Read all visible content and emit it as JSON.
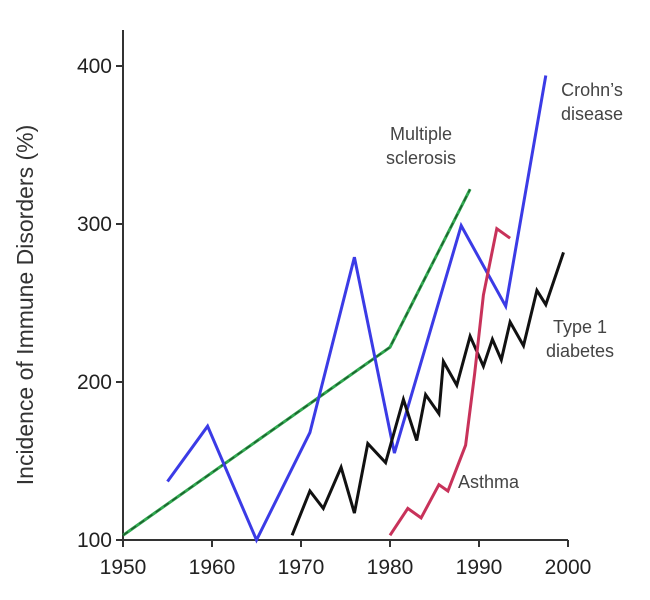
{
  "chart_data": {
    "type": "line",
    "title": "",
    "xlabel": "",
    "ylabel": "Incidence of Immune Disorders (%)",
    "xlim": [
      1950,
      2000
    ],
    "ylim": [
      100,
      420
    ],
    "x_ticks": [
      "1950",
      "1960",
      "1970",
      "1980",
      "1990",
      "2000"
    ],
    "y_ticks": [
      "100",
      "200",
      "300",
      "400"
    ],
    "grid": false,
    "legend": "none",
    "series": [
      {
        "name": "Multiple sclerosis",
        "label_lines": [
          "Multiple",
          "sclerosis"
        ],
        "color": "#2fa84f",
        "dashed_overlay": true,
        "points": [
          [
            1950,
            103
          ],
          [
            1980,
            222
          ],
          [
            1989,
            322
          ]
        ]
      },
      {
        "name": "Crohn’s disease",
        "label_lines": [
          "Crohn’s",
          "disease"
        ],
        "color": "#3b3be6",
        "points": [
          [
            1955,
            137
          ],
          [
            1959.5,
            172
          ],
          [
            1965,
            100
          ],
          [
            1971,
            168
          ],
          [
            1976,
            279
          ],
          [
            1980.5,
            155
          ],
          [
            1988,
            299
          ],
          [
            1993,
            248
          ],
          [
            1997.5,
            394
          ]
        ]
      },
      {
        "name": "Type 1 diabetes",
        "label_lines": [
          "Type 1",
          "diabetes"
        ],
        "color": "#111111",
        "points": [
          [
            1969,
            103
          ],
          [
            1971,
            131
          ],
          [
            1972.5,
            120
          ],
          [
            1974.5,
            146
          ],
          [
            1976,
            117
          ],
          [
            1977.5,
            161
          ],
          [
            1979.5,
            149
          ],
          [
            1981.5,
            189
          ],
          [
            1983,
            163
          ],
          [
            1984,
            192
          ],
          [
            1985.5,
            180
          ],
          [
            1986,
            213
          ],
          [
            1987.5,
            198
          ],
          [
            1989,
            229
          ],
          [
            1990.5,
            210
          ],
          [
            1991.5,
            227
          ],
          [
            1992.5,
            214
          ],
          [
            1993.5,
            238
          ],
          [
            1995,
            223
          ],
          [
            1996.5,
            258
          ],
          [
            1997.5,
            249
          ],
          [
            1999.5,
            282
          ]
        ]
      },
      {
        "name": "Asthma",
        "label_lines": [
          "Asthma"
        ],
        "color": "#c8325a",
        "points": [
          [
            1980,
            103
          ],
          [
            1982,
            120
          ],
          [
            1983.5,
            114
          ],
          [
            1985.5,
            135
          ],
          [
            1986.5,
            131
          ],
          [
            1988.5,
            160
          ],
          [
            1989.5,
            205
          ],
          [
            1990.5,
            255
          ],
          [
            1992,
            297
          ],
          [
            1993.5,
            291
          ]
        ]
      }
    ]
  }
}
